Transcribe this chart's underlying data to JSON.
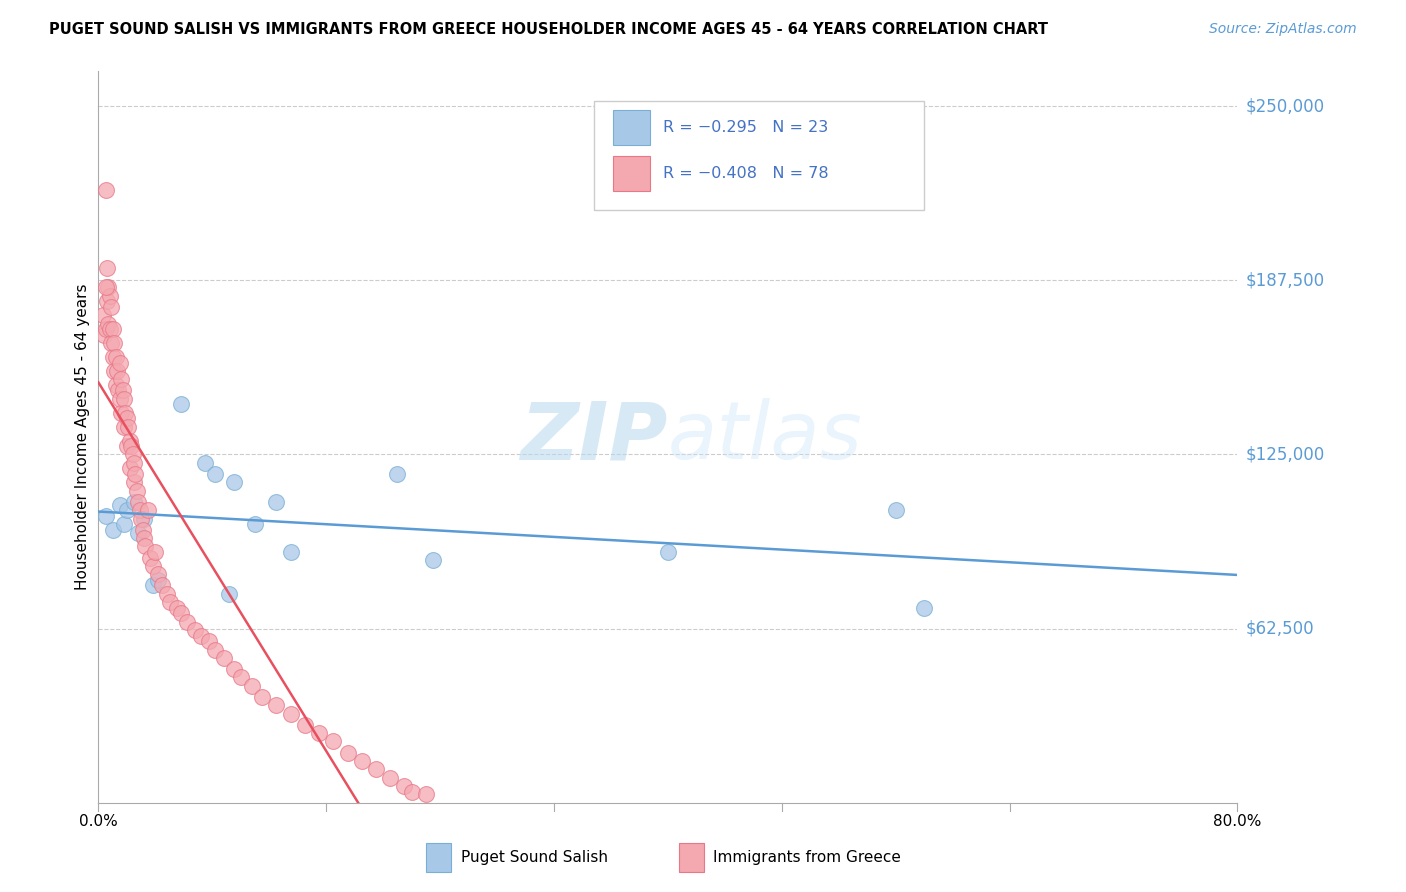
{
  "title": "PUGET SOUND SALISH VS IMMIGRANTS FROM GREECE HOUSEHOLDER INCOME AGES 45 - 64 YEARS CORRELATION CHART",
  "source": "Source: ZipAtlas.com",
  "ylabel": "Householder Income Ages 45 - 64 years",
  "xlim": [
    0.0,
    0.8
  ],
  "ylim": [
    0,
    262500
  ],
  "yticks": [
    62500,
    125000,
    187500,
    250000
  ],
  "ytick_labels": [
    "$62,500",
    "$125,000",
    "$187,500",
    "$250,000"
  ],
  "background_color": "#ffffff",
  "grid_color": "#cccccc",
  "watermark_zip": "ZIP",
  "watermark_atlas": "atlas",
  "blue_color": "#a8c8e8",
  "blue_edge_color": "#7aafd4",
  "pink_color": "#f4a8b0",
  "pink_edge_color": "#e87888",
  "blue_line_color": "#5b9bd5",
  "pink_line_color": "#e85060",
  "legend_color": "#4472c4",
  "right_label_color": "#5b9bd5",
  "source_color": "#5b9bd5",
  "blue_x": [
    0.005,
    0.01,
    0.015,
    0.018,
    0.02,
    0.025,
    0.028,
    0.032,
    0.038,
    0.042,
    0.058,
    0.075,
    0.082,
    0.095,
    0.11,
    0.125,
    0.135,
    0.21,
    0.235,
    0.4,
    0.56,
    0.58,
    0.092
  ],
  "blue_y": [
    103000,
    98000,
    107000,
    100000,
    105000,
    108000,
    97000,
    102000,
    78000,
    80000,
    143000,
    122000,
    118000,
    115000,
    100000,
    108000,
    90000,
    118000,
    87000,
    90000,
    105000,
    70000,
    75000
  ],
  "pink_x": [
    0.003,
    0.004,
    0.005,
    0.005,
    0.006,
    0.006,
    0.007,
    0.007,
    0.008,
    0.008,
    0.009,
    0.009,
    0.01,
    0.01,
    0.011,
    0.011,
    0.012,
    0.012,
    0.013,
    0.014,
    0.015,
    0.015,
    0.016,
    0.016,
    0.017,
    0.018,
    0.018,
    0.019,
    0.02,
    0.02,
    0.021,
    0.022,
    0.022,
    0.023,
    0.024,
    0.025,
    0.025,
    0.026,
    0.027,
    0.028,
    0.029,
    0.03,
    0.031,
    0.032,
    0.033,
    0.035,
    0.036,
    0.038,
    0.04,
    0.042,
    0.045,
    0.048,
    0.05,
    0.055,
    0.058,
    0.062,
    0.068,
    0.072,
    0.078,
    0.082,
    0.088,
    0.095,
    0.1,
    0.108,
    0.115,
    0.125,
    0.135,
    0.145,
    0.155,
    0.165,
    0.175,
    0.185,
    0.195,
    0.205,
    0.215,
    0.22,
    0.005,
    0.23
  ],
  "pink_y": [
    175000,
    168000,
    220000,
    170000,
    192000,
    180000,
    185000,
    172000,
    182000,
    170000,
    178000,
    165000,
    170000,
    160000,
    165000,
    155000,
    160000,
    150000,
    155000,
    148000,
    158000,
    145000,
    152000,
    140000,
    148000,
    145000,
    135000,
    140000,
    138000,
    128000,
    135000,
    130000,
    120000,
    128000,
    125000,
    122000,
    115000,
    118000,
    112000,
    108000,
    105000,
    102000,
    98000,
    95000,
    92000,
    105000,
    88000,
    85000,
    90000,
    82000,
    78000,
    75000,
    72000,
    70000,
    68000,
    65000,
    62000,
    60000,
    58000,
    55000,
    52000,
    48000,
    45000,
    42000,
    38000,
    35000,
    32000,
    28000,
    25000,
    22000,
    18000,
    15000,
    12000,
    9000,
    6000,
    4000,
    185000,
    3000
  ],
  "blue_line_x0": 0.0,
  "blue_line_x1": 0.8,
  "pink_line_x0": 0.0,
  "pink_line_x1": 0.245
}
